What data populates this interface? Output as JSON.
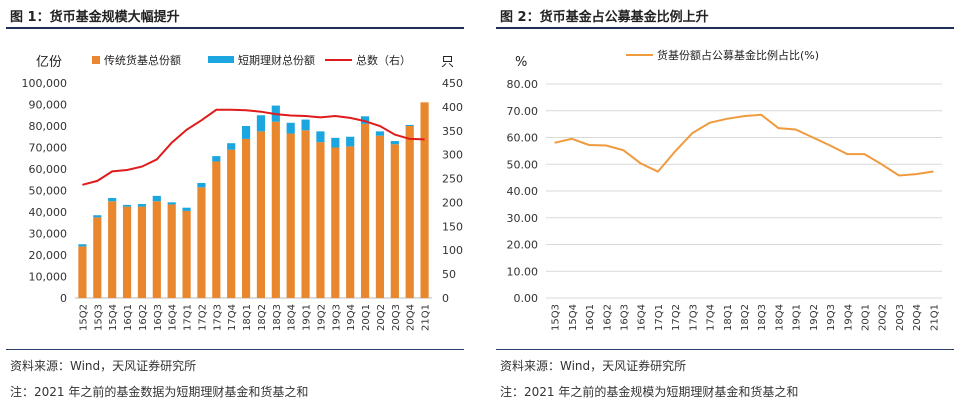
{
  "colors": {
    "fund_bar": "#e8872d",
    "short_bar": "#1ca6df",
    "count_line": "#e01b1b",
    "share_line": "#f09a3e",
    "rule": "#1f2f5a"
  },
  "panel1": {
    "title": "图 1：货币基金规模大幅提升",
    "source": "资料来源：Wind，天风证券研究所",
    "note": "注：2021 年之前的基金数据为短期理财基金和货基之和"
  },
  "panel2": {
    "title": "图 2：货币基金占公募基金比例上升",
    "source": "资料来源：Wind，天风证券研究所",
    "note": "注：2021 年之前的基金规模为短期理财基金和货基之和"
  },
  "chart_data": [
    {
      "type": "bar",
      "title": "",
      "ylabel": "亿份",
      "ylabel_right": "只",
      "ylim": [
        0,
        100000
      ],
      "y_ticks": [
        "0",
        "10,000",
        "20,000",
        "30,000",
        "40,000",
        "50,000",
        "60,000",
        "70,000",
        "80,000",
        "90,000",
        "100,000"
      ],
      "ylim_right": [
        0,
        450
      ],
      "y_ticks_right": [
        "0",
        "50",
        "100",
        "150",
        "200",
        "250",
        "300",
        "350",
        "400",
        "450"
      ],
      "categories": [
        "15Q2",
        "15Q3",
        "15Q4",
        "16Q1",
        "16Q2",
        "16Q3",
        "16Q4",
        "17Q1",
        "17Q2",
        "17Q3",
        "17Q4",
        "18Q1",
        "18Q2",
        "18Q3",
        "18Q4",
        "19Q1",
        "19Q2",
        "19Q3",
        "19Q4",
        "20Q1",
        "20Q2",
        "20Q3",
        "20Q4",
        "21Q1"
      ],
      "legend": [
        "传统货基总份额",
        "短期理财总份额",
        "总数（右）"
      ],
      "series": [
        {
          "name": "传统货基总份额",
          "kind": "bar",
          "axis": "left",
          "values": [
            24000,
            37500,
            45000,
            42500,
            42500,
            45000,
            43500,
            40500,
            51500,
            63500,
            69000,
            74000,
            77500,
            82000,
            76500,
            78000,
            72500,
            70000,
            70500,
            81000,
            75500,
            71500,
            80000,
            91000
          ]
        },
        {
          "name": "短期理财总份额",
          "kind": "bar",
          "axis": "left",
          "values": [
            1000,
            1000,
            1500,
            800,
            1200,
            2500,
            1000,
            1500,
            2000,
            2500,
            3000,
            6000,
            7500,
            7500,
            5000,
            5000,
            5000,
            4500,
            4500,
            3500,
            2000,
            1500,
            500,
            0
          ]
        },
        {
          "name": "总数（右）",
          "kind": "line",
          "axis": "right",
          "values": [
            237,
            245,
            265,
            268,
            275,
            290,
            325,
            352,
            372,
            394,
            394,
            393,
            390,
            385,
            382,
            381,
            378,
            381,
            377,
            370,
            360,
            342,
            333,
            332
          ]
        }
      ]
    },
    {
      "type": "line",
      "title": "",
      "ylabel": "%",
      "ylim": [
        0,
        80
      ],
      "y_ticks": [
        "0.00",
        "10.00",
        "20.00",
        "30.00",
        "40.00",
        "50.00",
        "60.00",
        "70.00",
        "80.00"
      ],
      "categories": [
        "15Q3",
        "15Q4",
        "16Q1",
        "16Q2",
        "16Q3",
        "16Q4",
        "17Q1",
        "17Q2",
        "17Q3",
        "17Q4",
        "18Q1",
        "18Q2",
        "18Q3",
        "18Q4",
        "19Q1",
        "19Q2",
        "19Q3",
        "19Q4",
        "20Q1",
        "20Q2",
        "20Q3",
        "20Q4",
        "21Q1"
      ],
      "legend": [
        "货基份额占公募基金比例占比(%)"
      ],
      "series": [
        {
          "name": "货基份额占公募基金比例占比(%)",
          "values": [
            58.0,
            59.5,
            57.2,
            57.0,
            55.2,
            50.3,
            47.2,
            54.8,
            61.6,
            65.5,
            67.0,
            68.0,
            68.5,
            63.5,
            63.0,
            60.0,
            57.0,
            53.8,
            53.8,
            50.0,
            45.8,
            46.3,
            47.3
          ]
        }
      ]
    }
  ]
}
